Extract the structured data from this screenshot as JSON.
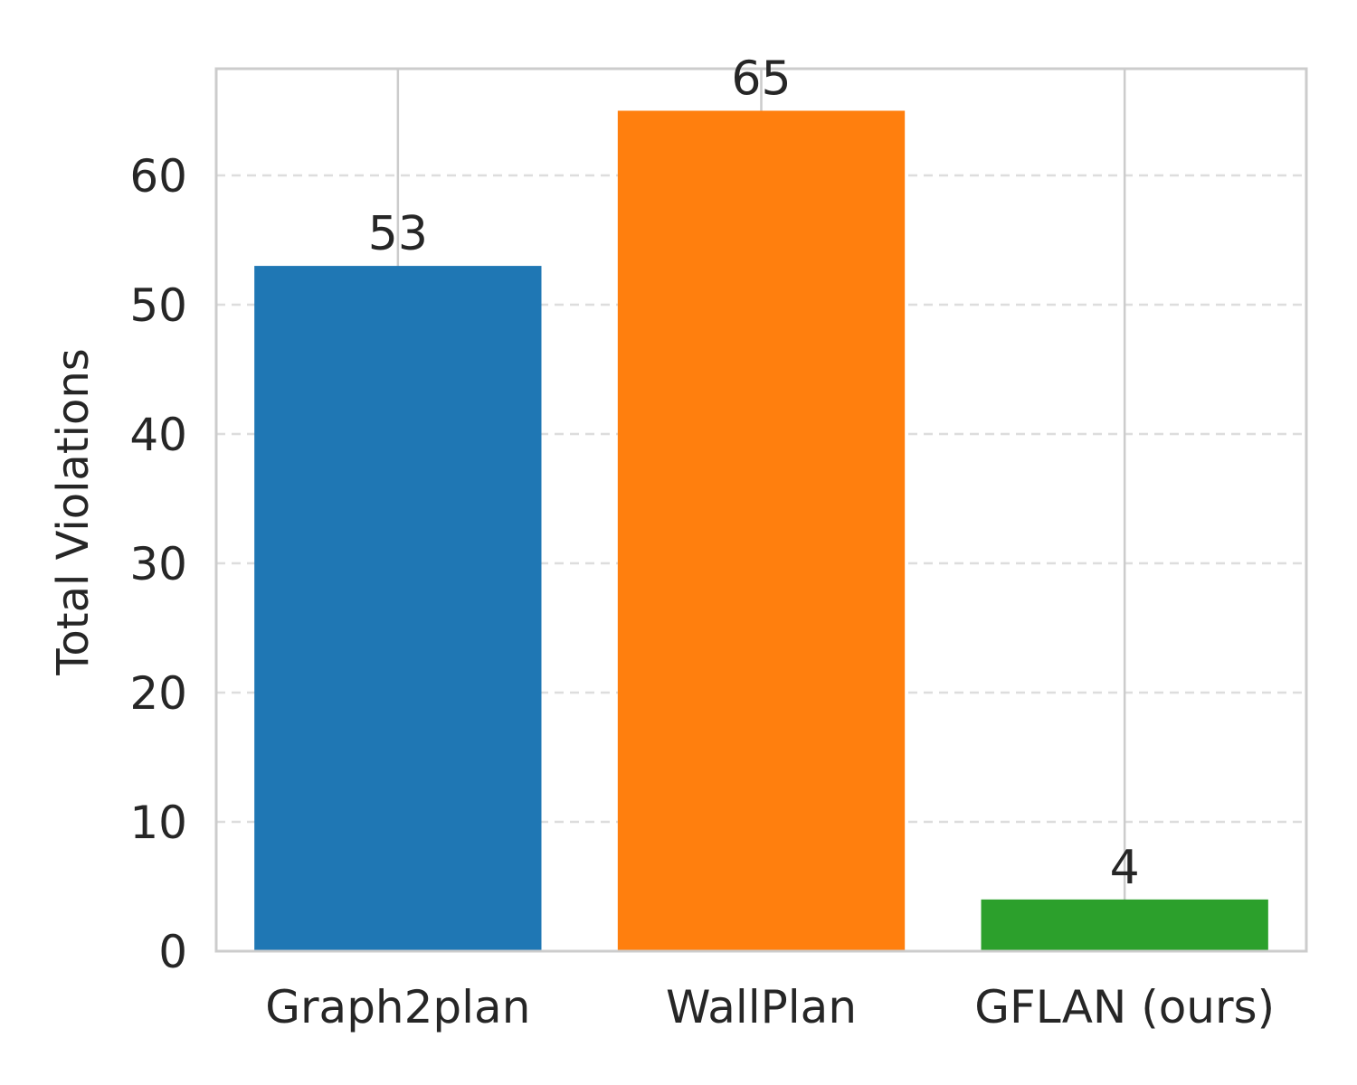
{
  "chart_data": {
    "type": "bar",
    "title": "",
    "xlabel": "",
    "ylabel": "Total Violations",
    "categories": [
      "Graph2plan",
      "WallPlan",
      "GFLAN (ours)"
    ],
    "values": [
      53,
      65,
      4
    ],
    "value_labels": [
      "53",
      "65",
      "4"
    ],
    "colors": [
      "#1f77b4",
      "#ff7f0e",
      "#2ca02c"
    ],
    "ylim": [
      0,
      68.25
    ],
    "yticks": [
      0,
      10,
      20,
      30,
      40,
      50,
      60
    ],
    "ytick_labels": [
      "0",
      "10",
      "20",
      "30",
      "40",
      "50",
      "60"
    ],
    "grid": {
      "y": "dashed",
      "x": "solid"
    },
    "legend": "none"
  }
}
